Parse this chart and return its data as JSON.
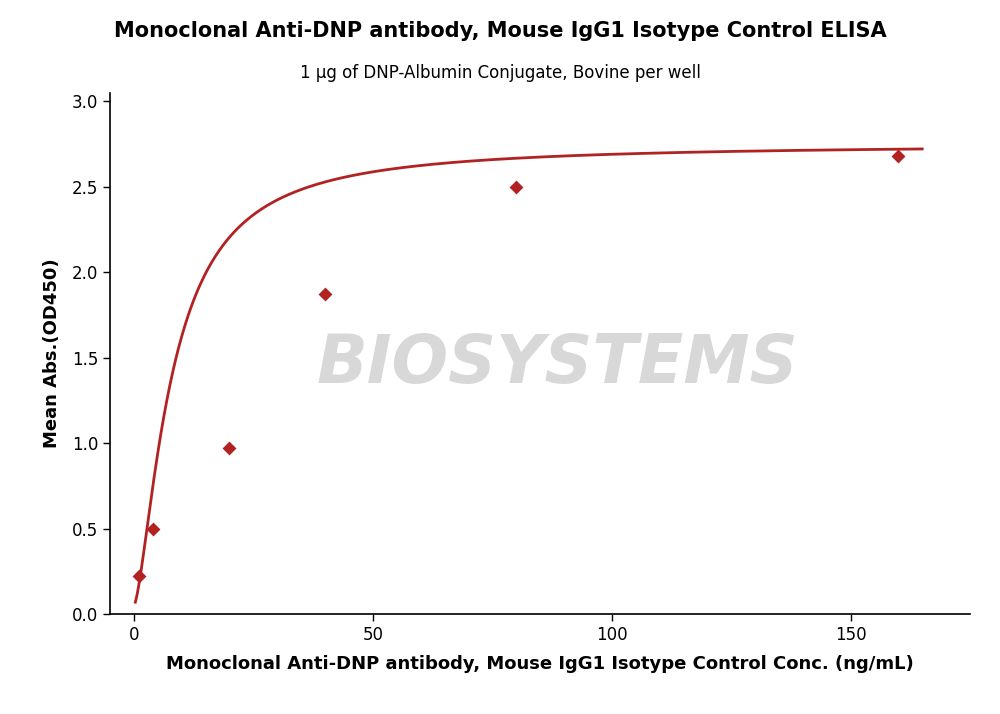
{
  "title": "Monoclonal Anti-DNP antibody, Mouse IgG1 Isotype Control ELISA",
  "subtitle": "1 μg of DNP-Albumin Conjugate, Bovine per well",
  "xlabel": "Monoclonal Anti-DNP antibody, Mouse IgG1 Isotype Control Conc. (ng/mL)",
  "ylabel": "Mean Abs.(OD450)",
  "x_data_points": [
    1.0,
    4.0,
    20.0,
    40.0,
    80.0,
    160.0
  ],
  "y_data_points": [
    0.22,
    0.5,
    0.97,
    1.87,
    2.5,
    2.68
  ],
  "curve_color": "#B22222",
  "point_color": "#B22222",
  "xlim": [
    -5,
    175
  ],
  "ylim": [
    0.0,
    3.05
  ],
  "xticks": [
    0,
    50,
    100,
    150
  ],
  "yticks": [
    0.0,
    0.5,
    1.0,
    1.5,
    2.0,
    2.5,
    3.0
  ],
  "background_color": "#ffffff",
  "watermark_text": "BIOSYSTEMS",
  "watermark_color": "#d8d8d8",
  "title_fontsize": 15,
  "subtitle_fontsize": 12,
  "xlabel_fontsize": 13,
  "ylabel_fontsize": 13,
  "tick_fontsize": 12
}
